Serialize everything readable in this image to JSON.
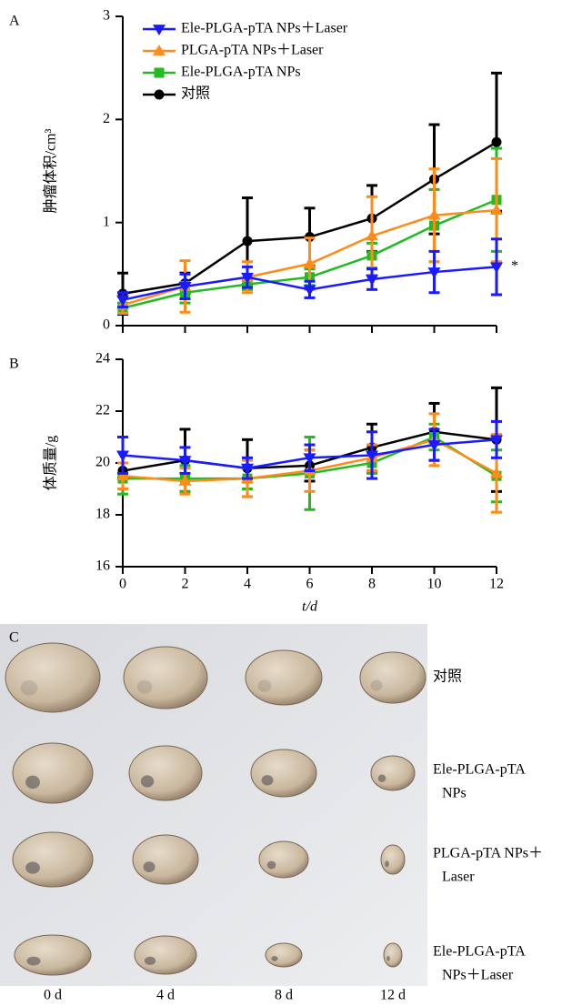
{
  "chart_data": [
    {
      "type": "line",
      "panel": "A",
      "ylabel": "肿瘤体积/cm³",
      "annotation": "*",
      "x": [
        0,
        2,
        4,
        6,
        8,
        10,
        12
      ],
      "xlim": [
        0,
        12
      ],
      "ylim": [
        0,
        3
      ],
      "yticks": [
        0,
        1,
        2,
        3
      ],
      "legend": "upper left",
      "series": [
        {
          "name": "Ele-PLGA-pTA NPs＋Laser",
          "color": "#1a1aff",
          "marker": "v",
          "values": [
            0.25,
            0.38,
            0.47,
            0.35,
            0.45,
            0.52,
            0.57
          ],
          "errors": [
            0.07,
            0.12,
            0.1,
            0.08,
            0.1,
            0.2,
            0.27
          ]
        },
        {
          "name": "PLGA-pTA NPs＋Laser",
          "color": "#ff8c1a",
          "marker": "^",
          "values": [
            0.2,
            0.38,
            0.47,
            0.6,
            0.87,
            1.07,
            1.12
          ],
          "errors": [
            0.08,
            0.25,
            0.15,
            0.25,
            0.38,
            0.45,
            0.5
          ]
        },
        {
          "name": "Ele-PLGA-pTA NPs",
          "color": "#22bb22",
          "marker": "s",
          "values": [
            0.17,
            0.32,
            0.4,
            0.47,
            0.68,
            0.97,
            1.22
          ],
          "errors": [
            0.05,
            0.1,
            0.05,
            0.08,
            0.12,
            0.35,
            0.5
          ]
        },
        {
          "name": "对照",
          "color": "#000000",
          "marker": "o",
          "values": [
            0.31,
            0.41,
            0.82,
            0.86,
            1.04,
            1.42,
            1.78
          ],
          "errors": [
            0.2,
            0.1,
            0.42,
            0.28,
            0.32,
            0.53,
            0.67
          ]
        }
      ]
    },
    {
      "type": "line",
      "panel": "B",
      "ylabel": "体质量/g",
      "xlabel": "t/d",
      "x": [
        0,
        2,
        4,
        6,
        8,
        10,
        12
      ],
      "xlim": [
        0,
        12
      ],
      "xticks": [
        0,
        2,
        4,
        6,
        8,
        10,
        12
      ],
      "ylim": [
        16,
        24
      ],
      "yticks": [
        16,
        18,
        20,
        22,
        24
      ],
      "series": [
        {
          "color": "#1a1aff",
          "marker": "v",
          "values": [
            20.3,
            20.1,
            19.8,
            20.2,
            20.3,
            20.7,
            20.9
          ],
          "errors": [
            0.7,
            0.5,
            0.4,
            0.5,
            0.9,
            0.6,
            0.7
          ]
        },
        {
          "color": "#ff8c1a",
          "marker": "^",
          "values": [
            19.5,
            19.3,
            19.4,
            19.7,
            20.2,
            20.9,
            19.6
          ],
          "errors": [
            0.5,
            0.5,
            0.7,
            0.8,
            0.5,
            1.0,
            1.5
          ]
        },
        {
          "color": "#22bb22",
          "marker": "s",
          "values": [
            19.4,
            19.4,
            19.4,
            19.6,
            20.0,
            21.0,
            19.5
          ],
          "errors": [
            0.6,
            0.5,
            0.4,
            1.4,
            0.4,
            0.5,
            1.0
          ]
        },
        {
          "color": "#000000",
          "marker": "o",
          "values": [
            19.7,
            20.1,
            19.8,
            19.9,
            20.6,
            21.2,
            20.9
          ],
          "errors": [
            0.3,
            1.2,
            1.1,
            0.6,
            0.9,
            1.1,
            2.0
          ]
        }
      ]
    }
  ],
  "photo": {
    "panel": "C",
    "columns": [
      "0 d",
      "4 d",
      "8 d",
      "12 d"
    ],
    "rows": [
      [
        "对照"
      ],
      [
        "Ele-PLGA-pTA",
        "NPs"
      ],
      [
        "PLGA-pTA NPs＋",
        "Laser"
      ],
      [
        "Ele-PLGA-pTA",
        "NPs＋Laser"
      ]
    ]
  }
}
